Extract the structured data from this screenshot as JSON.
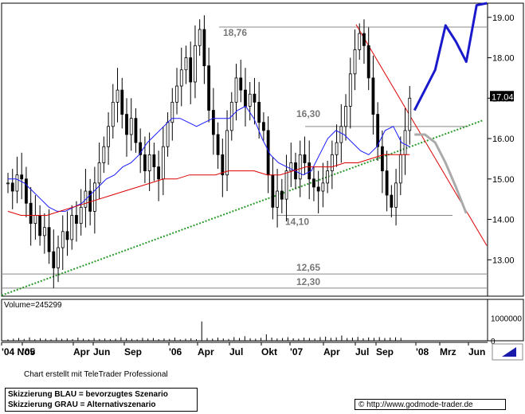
{
  "chart_data": {
    "type": "candlestick",
    "price_axis": {
      "ticks": [
        "19.00",
        "18.00",
        "17.00",
        "16.00",
        "15.00",
        "14.00",
        "13.00"
      ],
      "tick_values": [
        19,
        18,
        17,
        16,
        15,
        14,
        13
      ],
      "current_price_label": "17.04",
      "current_price": 17.04,
      "range": [
        12.1,
        19.35
      ]
    },
    "volume_axis": {
      "ticks": [
        "1000000",
        "0"
      ],
      "tick_values": [
        1000000,
        0
      ],
      "label": "Volume=245299",
      "range": [
        0,
        1400000
      ]
    },
    "x_axis_labels": [
      "'04 Nov",
      "'05",
      "Apr",
      "Jun",
      "Sep",
      "'06",
      "Apr",
      "Jul",
      "Okt",
      "'07",
      "Apr",
      "Jul",
      "Sep",
      "'08",
      "Mrz",
      "Jun"
    ],
    "level_labels": [
      {
        "text": "18,76",
        "value": 18.76
      },
      {
        "text": "16,30",
        "value": 16.3
      },
      {
        "text": "14,10",
        "value": 14.1
      },
      {
        "text": "12,65",
        "value": 12.65
      },
      {
        "text": "12,30",
        "value": 12.3
      }
    ],
    "close_series": [
      14.9,
      14.7,
      15.1,
      15.0,
      14.4,
      13.9,
      14.1,
      13.6,
      13.8,
      13.2,
      12.8,
      13.3,
      13.7,
      13.5,
      14.1,
      13.9,
      14.3,
      14.7,
      14.2,
      14.9,
      15.4,
      15.8,
      16.3,
      16.9,
      17.2,
      16.6,
      16.1,
      16.5,
      15.9,
      15.6,
      15.2,
      15.6,
      15.3,
      15.0,
      15.8,
      16.4,
      16.9,
      17.3,
      17.7,
      18.0,
      17.4,
      18.3,
      18.7,
      17.8,
      16.7,
      16.1,
      15.6,
      15.1,
      16.2,
      16.9,
      17.5,
      17.2,
      16.8,
      17.1,
      16.9,
      16.4,
      16.2,
      15.1,
      14.3,
      14.7,
      14.5,
      15.2,
      15.4,
      15.0,
      15.6,
      15.4,
      15.0,
      14.8,
      14.7,
      14.9,
      15.2,
      15.6,
      15.9,
      16.3,
      16.8,
      17.6,
      18.2,
      18.6,
      18.3,
      17.5,
      16.6,
      15.8,
      15.2,
      14.6,
      14.3,
      14.9,
      15.6,
      16.2,
      17.0
    ],
    "ma_blue": [
      15.0,
      15.0,
      14.9,
      14.7,
      14.5,
      14.3,
      14.2,
      14.2,
      14.3,
      14.4,
      14.6,
      14.8,
      15.0,
      15.1,
      15.3,
      15.4,
      15.6,
      15.9,
      16.1,
      16.3,
      16.5,
      16.5,
      16.4,
      16.3,
      16.4,
      16.5,
      16.5,
      16.5,
      16.7,
      16.8,
      16.5,
      16.0,
      15.6,
      15.4,
      15.3,
      15.2,
      15.1,
      15.2,
      15.6,
      16.0,
      16.2,
      16.1,
      15.9,
      15.7,
      15.6,
      15.8,
      16.2,
      16.3,
      15.9,
      15.8
    ],
    "ma_red": [
      14.2,
      14.1,
      14.1,
      14.1,
      14.2,
      14.3,
      14.4,
      14.5,
      14.6,
      14.7,
      14.8,
      14.9,
      15.0,
      15.0,
      15.1,
      15.1,
      15.1,
      15.2,
      15.2,
      15.2,
      15.1,
      15.1,
      15.2,
      15.3,
      15.3,
      15.3,
      15.4,
      15.4,
      15.5,
      15.6,
      15.6,
      15.6
    ],
    "volume_series": [
      60000,
      90000,
      120000,
      80000,
      150000,
      70000,
      110000,
      90000,
      60000,
      130000,
      80000,
      100000,
      70000,
      140000,
      90000,
      60000,
      120000,
      80000,
      100000,
      70000,
      90000,
      150000,
      110000,
      80000,
      60000,
      130000,
      90000,
      120000,
      70000,
      100000,
      80000,
      140000,
      60000,
      90000,
      110000,
      70000,
      850000,
      120000,
      90000,
      140000,
      100000,
      80000,
      160000,
      120000,
      200000,
      110000,
      90000,
      130000,
      280000,
      140000,
      100000,
      120000,
      160000,
      110000,
      90000,
      140000,
      120000,
      100000,
      160000,
      180000,
      130000,
      150000,
      230000,
      120000,
      140000,
      170000,
      110000,
      150000,
      130000,
      160000,
      120000,
      140000,
      150000,
      130000
    ],
    "scenario_blue": [
      [
        16.7,
        17.2
      ],
      [
        17.7,
        18.8
      ],
      [
        18.4,
        17.9
      ],
      [
        19.3,
        19.35
      ]
    ],
    "scenario_grey": [
      [
        16.1,
        16.1
      ],
      [
        15.9,
        15.4
      ],
      [
        14.8,
        14.15
      ]
    ]
  },
  "footer": {
    "credit": "Chart erstellt mit TeleTrader Professional",
    "legend_blue": "Skizzierung BLAU = bevorzugtes Szenario",
    "legend_grey": "Skizzierung GRAU = Alternativszenario",
    "copyright": "©",
    "url": "http://www.godmode-trader.de"
  }
}
